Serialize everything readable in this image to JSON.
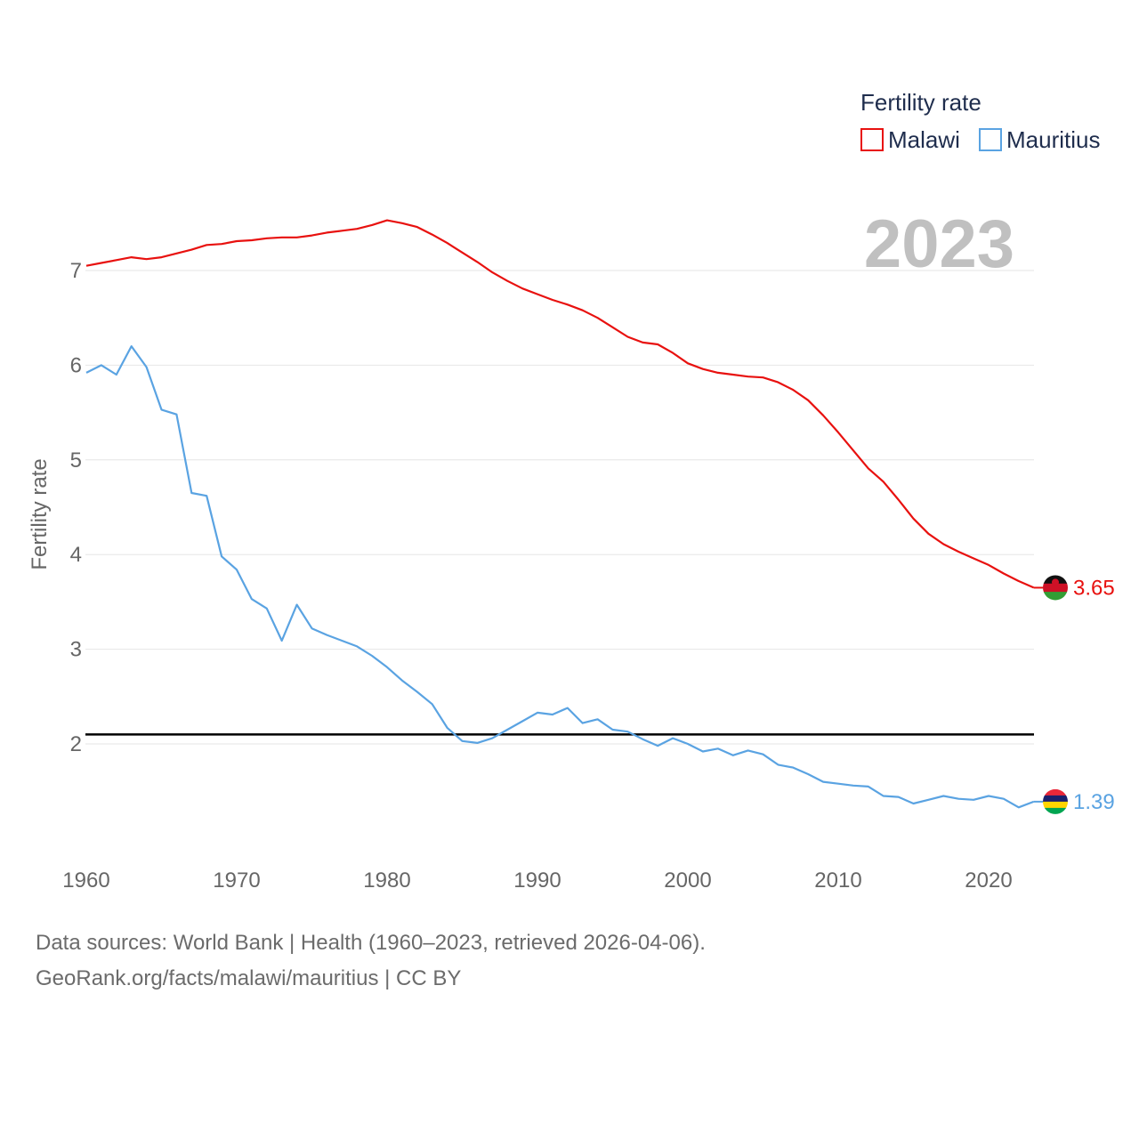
{
  "chart_data": {
    "type": "line",
    "title": "Fertility rate",
    "year_label": "2023",
    "xlabel": "",
    "ylabel": "Fertility rate",
    "xlim": [
      1960,
      2023
    ],
    "ylim": [
      1,
      7.8
    ],
    "x_ticks": [
      1960,
      1970,
      1980,
      1990,
      2000,
      2010,
      2020
    ],
    "y_ticks": [
      2,
      3,
      4,
      5,
      6,
      7
    ],
    "reference_line": {
      "value": 2.1,
      "color": "#000000"
    },
    "x": [
      1960,
      1961,
      1962,
      1963,
      1964,
      1965,
      1966,
      1967,
      1968,
      1969,
      1970,
      1971,
      1972,
      1973,
      1974,
      1975,
      1976,
      1977,
      1978,
      1979,
      1980,
      1981,
      1982,
      1983,
      1984,
      1985,
      1986,
      1987,
      1988,
      1989,
      1990,
      1991,
      1992,
      1993,
      1994,
      1995,
      1996,
      1997,
      1998,
      1999,
      2000,
      2001,
      2002,
      2003,
      2004,
      2005,
      2006,
      2007,
      2008,
      2009,
      2010,
      2011,
      2012,
      2013,
      2014,
      2015,
      2016,
      2017,
      2018,
      2019,
      2020,
      2021,
      2022,
      2023
    ],
    "series": [
      {
        "name": "Malawi",
        "color": "#e8110f",
        "end_label": "3.65",
        "values": [
          7.05,
          7.08,
          7.11,
          7.14,
          7.12,
          7.14,
          7.18,
          7.22,
          7.27,
          7.28,
          7.31,
          7.32,
          7.34,
          7.35,
          7.35,
          7.37,
          7.4,
          7.42,
          7.44,
          7.48,
          7.53,
          7.5,
          7.46,
          7.38,
          7.29,
          7.19,
          7.09,
          6.98,
          6.89,
          6.81,
          6.75,
          6.69,
          6.64,
          6.58,
          6.5,
          6.4,
          6.3,
          6.24,
          6.22,
          6.13,
          6.02,
          5.96,
          5.92,
          5.9,
          5.88,
          5.87,
          5.82,
          5.74,
          5.63,
          5.47,
          5.29,
          5.1,
          4.91,
          4.77,
          4.58,
          4.38,
          4.22,
          4.11,
          4.03,
          3.96,
          3.89,
          3.8,
          3.72,
          3.65
        ]
      },
      {
        "name": "Mauritius",
        "color": "#5aa3e2",
        "end_label": "1.39",
        "values": [
          5.92,
          6.0,
          5.9,
          6.2,
          5.98,
          5.53,
          5.48,
          4.65,
          4.62,
          3.98,
          3.84,
          3.53,
          3.43,
          3.09,
          3.47,
          3.22,
          3.15,
          3.09,
          3.03,
          2.93,
          2.81,
          2.67,
          2.55,
          2.42,
          2.17,
          2.03,
          2.01,
          2.06,
          2.15,
          2.24,
          2.33,
          2.31,
          2.38,
          2.22,
          2.26,
          2.15,
          2.13,
          2.05,
          1.98,
          2.06,
          2.0,
          1.92,
          1.95,
          1.88,
          1.93,
          1.89,
          1.78,
          1.75,
          1.68,
          1.6,
          1.58,
          1.56,
          1.55,
          1.45,
          1.44,
          1.37,
          1.41,
          1.45,
          1.42,
          1.41,
          1.45,
          1.42,
          1.33,
          1.39
        ]
      }
    ]
  },
  "footer": {
    "sources": "Data sources: World Bank | Health (1960–2023, retrieved 2026-04-06).",
    "attribution": "GeoRank.org/facts/malawi/mauritius | CC BY"
  }
}
